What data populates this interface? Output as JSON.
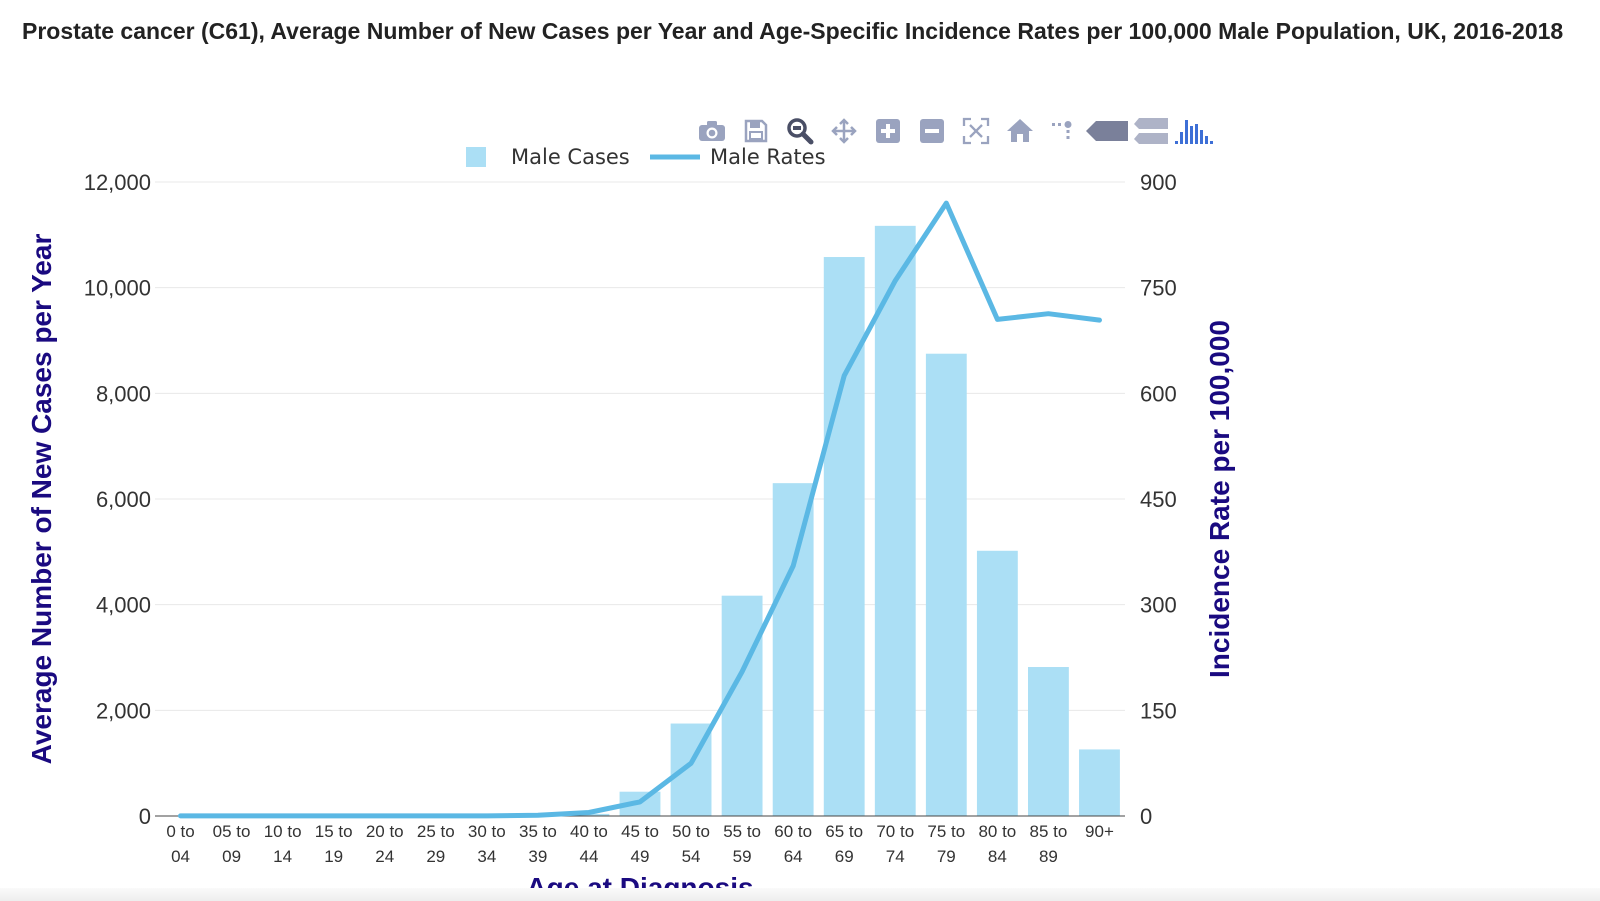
{
  "title": "Prostate cancer (C61), Average Number of New Cases per Year and Age-Specific Incidence Rates per 100,000 Male Population, UK, 2016-2018",
  "toolbar": {
    "buttons": [
      {
        "name": "camera-icon"
      },
      {
        "name": "save-icon"
      },
      {
        "name": "zoom-icon"
      },
      {
        "name": "pan-icon"
      },
      {
        "name": "zoom-in-icon"
      },
      {
        "name": "zoom-out-icon"
      },
      {
        "name": "autoscale-icon"
      },
      {
        "name": "home-icon"
      },
      {
        "name": "spike-lines-icon"
      },
      {
        "name": "hover-closest-icon"
      },
      {
        "name": "hover-compare-icon"
      },
      {
        "name": "plotly-logo-icon"
      }
    ]
  },
  "colors": {
    "bar": "#abdff5",
    "line": "#5bb8e4",
    "axis_title": "#1a0a80",
    "tick": "#333333",
    "grid": "#e8e8e8"
  },
  "chart_data": {
    "type": "bar",
    "title": "Prostate cancer (C61), Average Number of New Cases per Year and Age-Specific Incidence Rates per 100,000 Male Population, UK, 2016-2018",
    "xlabel": "Age at Diagnosis",
    "ylabel": "Average Number of New Cases per Year",
    "y2label": "Incidence Rate per 100,000",
    "legend_position": "top-center",
    "ylim": [
      0,
      12000
    ],
    "y2lim": [
      0,
      900
    ],
    "yticks": [
      "0",
      "2,000",
      "4,000",
      "6,000",
      "8,000",
      "10,000",
      "12,000"
    ],
    "y2ticks": [
      "0",
      "150",
      "300",
      "450",
      "600",
      "750",
      "900"
    ],
    "categories": [
      [
        "0 to",
        "04"
      ],
      [
        "05 to",
        "09"
      ],
      [
        "10 to",
        "14"
      ],
      [
        "15 to",
        "19"
      ],
      [
        "20 to",
        "24"
      ],
      [
        "25 to",
        "29"
      ],
      [
        "30 to",
        "34"
      ],
      [
        "35 to",
        "39"
      ],
      [
        "40 to",
        "44"
      ],
      [
        "45 to",
        "49"
      ],
      [
        "50 to",
        "54"
      ],
      [
        "55 to",
        "59"
      ],
      [
        "60 to",
        "64"
      ],
      [
        "65 to",
        "69"
      ],
      [
        "70 to",
        "74"
      ],
      [
        "75 to",
        "79"
      ],
      [
        "80 to",
        "84"
      ],
      [
        "85 to",
        "89"
      ],
      [
        "90+",
        ""
      ]
    ],
    "series": [
      {
        "name": "Male Cases",
        "kind": "bar",
        "axis": "y",
        "values": [
          0,
          0,
          0,
          0,
          0,
          0,
          0,
          5,
          40,
          460,
          1750,
          4170,
          6300,
          10580,
          11170,
          8750,
          5020,
          2820,
          1260
        ]
      },
      {
        "name": "Male Rates",
        "kind": "line",
        "axis": "y2",
        "values": [
          0.1,
          0.1,
          0.1,
          0.1,
          0.1,
          0.1,
          0.2,
          1,
          5,
          20,
          75,
          205,
          355,
          625,
          760,
          870,
          705,
          713,
          704
        ]
      }
    ]
  }
}
